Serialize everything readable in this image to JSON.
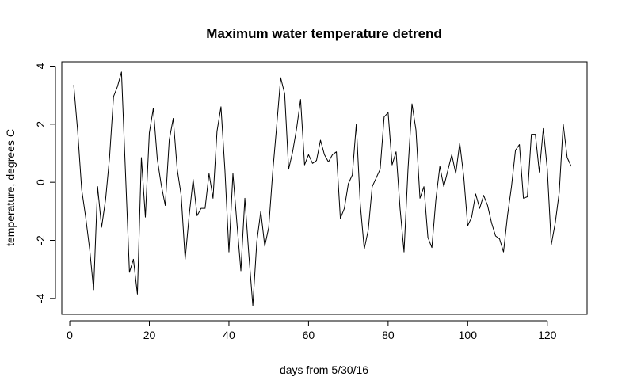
{
  "chart_data": {
    "type": "line",
    "title": "Maximum water temperature detrend",
    "xlabel": "days from 5/30/16",
    "ylabel": "temperature, degrees C",
    "xlim": [
      -2,
      130
    ],
    "ylim": [
      -4.55,
      4.15
    ],
    "x_ticks": [
      0,
      20,
      40,
      60,
      80,
      100,
      120
    ],
    "x_tick_labels": [
      "0",
      "20",
      "40",
      "60",
      "80",
      "100",
      "120"
    ],
    "y_ticks": [
      -4,
      -2,
      0,
      2,
      4
    ],
    "y_tick_labels": [
      "-4",
      "-2",
      "0",
      "2",
      "4"
    ],
    "grid": false,
    "series": [
      {
        "color": "#000000",
        "x": [
          1,
          2,
          3,
          4,
          5,
          6,
          7,
          8,
          9,
          10,
          11,
          12,
          13,
          14,
          15,
          16,
          17,
          18,
          19,
          20,
          21,
          22,
          23,
          24,
          25,
          26,
          27,
          28,
          29,
          30,
          31,
          32,
          33,
          34,
          35,
          36,
          37,
          38,
          39,
          40,
          41,
          42,
          43,
          44,
          45,
          46,
          47,
          48,
          49,
          50,
          51,
          52,
          53,
          54,
          55,
          56,
          57,
          58,
          59,
          60,
          61,
          62,
          63,
          64,
          65,
          66,
          67,
          68,
          69,
          70,
          71,
          72,
          73,
          74,
          75,
          76,
          77,
          78,
          79,
          80,
          81,
          82,
          83,
          84,
          85,
          86,
          87,
          88,
          89,
          90,
          91,
          92,
          93,
          94,
          95,
          96,
          97,
          98,
          99,
          100,
          101,
          102,
          103,
          104,
          105,
          106,
          107,
          108,
          109,
          110,
          111,
          112,
          113,
          114,
          115,
          116,
          117,
          118,
          119,
          120,
          121,
          122,
          123,
          124,
          125,
          126
        ],
        "y": [
          3.35,
          1.75,
          -0.25,
          -1.2,
          -2.3,
          -3.7,
          -0.15,
          -1.55,
          -0.6,
          0.85,
          2.95,
          3.3,
          3.8,
          0.35,
          -3.1,
          -2.65,
          -3.85,
          0.85,
          -1.2,
          1.7,
          2.55,
          0.8,
          -0.1,
          -0.8,
          1.45,
          2.2,
          0.45,
          -0.45,
          -2.65,
          -1.15,
          0.1,
          -1.15,
          -0.9,
          -0.9,
          0.3,
          -0.55,
          1.75,
          2.6,
          0.4,
          -2.4,
          0.3,
          -1.4,
          -3.05,
          -0.55,
          -2.5,
          -4.25,
          -2.05,
          -1.0,
          -2.2,
          -1.55,
          0.35,
          1.95,
          3.6,
          3.05,
          0.45,
          1.05,
          1.85,
          2.85,
          0.6,
          0.95,
          0.65,
          0.75,
          1.45,
          0.95,
          0.7,
          0.95,
          1.05,
          -1.25,
          -0.9,
          -0.05,
          0.25,
          2.0,
          -0.75,
          -2.3,
          -1.65,
          -0.15,
          0.15,
          0.45,
          2.25,
          2.4,
          0.6,
          1.05,
          -0.9,
          -2.4,
          0.45,
          2.7,
          1.8,
          -0.55,
          -0.15,
          -1.9,
          -2.25,
          -0.6,
          0.55,
          -0.15,
          0.4,
          0.95,
          0.3,
          1.35,
          0.2,
          -1.5,
          -1.2,
          -0.4,
          -0.9,
          -0.45,
          -0.8,
          -1.4,
          -1.85,
          -1.95,
          -2.4,
          -1.15,
          -0.15,
          1.1,
          1.3,
          -0.55,
          -0.5,
          1.65,
          1.65,
          0.35,
          1.85,
          0.45,
          -2.15,
          -1.4,
          -0.35,
          2.0,
          0.85,
          0.55
        ]
      }
    ]
  }
}
